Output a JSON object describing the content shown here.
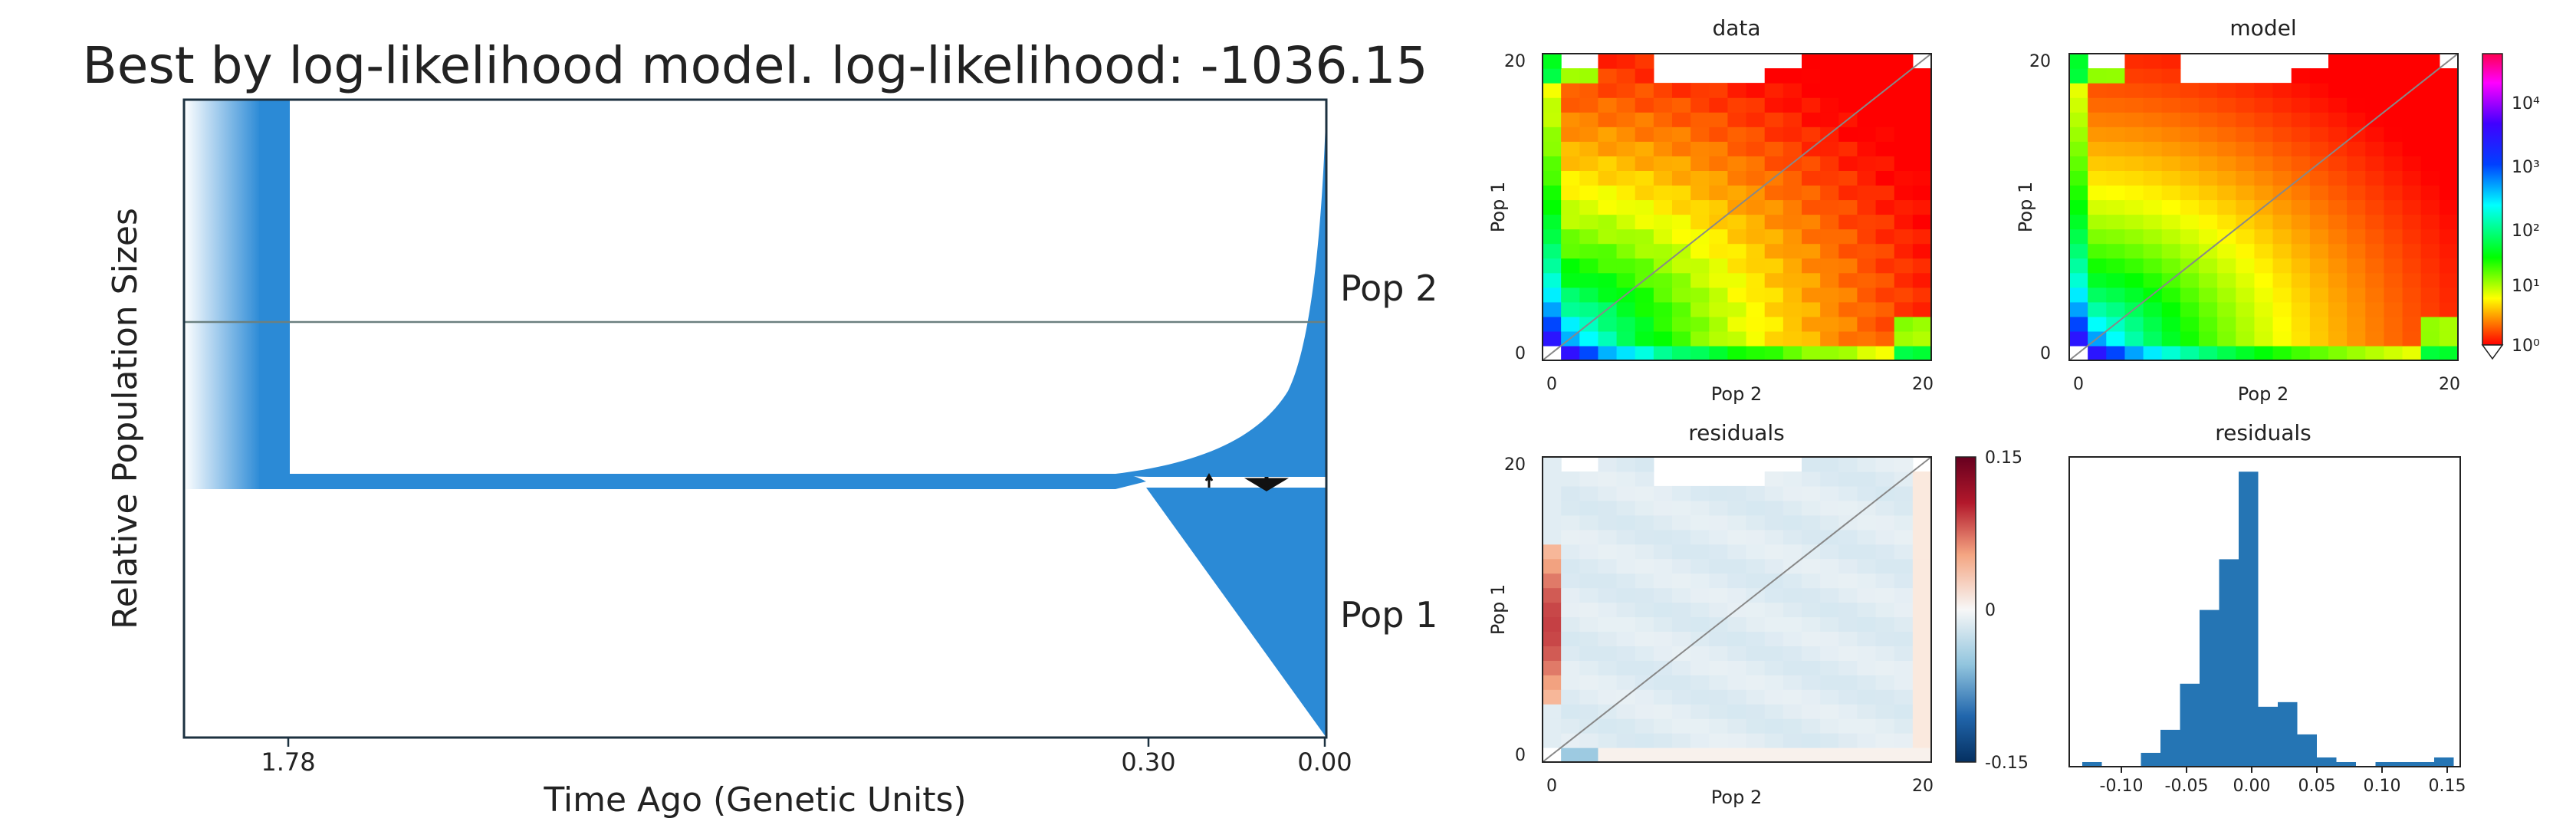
{
  "chart_data": [
    {
      "type": "area",
      "title": "Best by log-likelihood model. log-likelihood: -1036.15",
      "xlabel": "Time Ago (Genetic Units)",
      "ylabel": "Relative Population Sizes",
      "xticks": [
        "1.78",
        "0.30",
        "0.00"
      ],
      "populations": [
        "Pop 2",
        "Pop 1"
      ],
      "split_time": 0.3,
      "ancestral_start": 1.78,
      "color": "#2b8ad6"
    },
    {
      "type": "heatmap",
      "title": "data",
      "xlabel": "Pop 2",
      "ylabel": "Pop 1",
      "xticks": [
        "0",
        "20"
      ],
      "yticks": [
        "0",
        "20"
      ],
      "grid_size": 21
    },
    {
      "type": "heatmap",
      "title": "model",
      "xlabel": "Pop 2",
      "ylabel": "Pop 1",
      "xticks": [
        "0",
        "20"
      ],
      "yticks": [
        "0",
        "20"
      ],
      "grid_size": 21,
      "colorbar_ticks": [
        "10⁴",
        "10³",
        "10²",
        "10¹",
        "10⁰"
      ]
    },
    {
      "type": "heatmap",
      "title": "residuals",
      "xlabel": "Pop 2",
      "ylabel": "Pop 1",
      "xticks": [
        "0",
        "20"
      ],
      "yticks": [
        "0",
        "20"
      ],
      "grid_size": 21,
      "colorbar_ticks": [
        "0.15",
        "0",
        "-0.15"
      ]
    },
    {
      "type": "bar",
      "title": "residuals",
      "xticks": [
        "-0.10",
        "-0.05",
        "0.00",
        "0.05",
        "0.10",
        "0.15"
      ],
      "xlim": [
        -0.14,
        0.16
      ],
      "bin_edges": [
        -0.13,
        -0.115,
        -0.1,
        -0.085,
        -0.07,
        -0.055,
        -0.04,
        -0.025,
        -0.01,
        0.005,
        0.02,
        0.035,
        0.05,
        0.065,
        0.08,
        0.095,
        0.11,
        0.125,
        0.14,
        0.155
      ],
      "values": [
        1,
        0,
        0,
        3,
        8,
        18,
        34,
        45,
        64,
        13,
        14,
        7,
        2,
        1,
        0,
        1,
        1,
        1,
        2
      ],
      "color": "#2575b4"
    }
  ]
}
